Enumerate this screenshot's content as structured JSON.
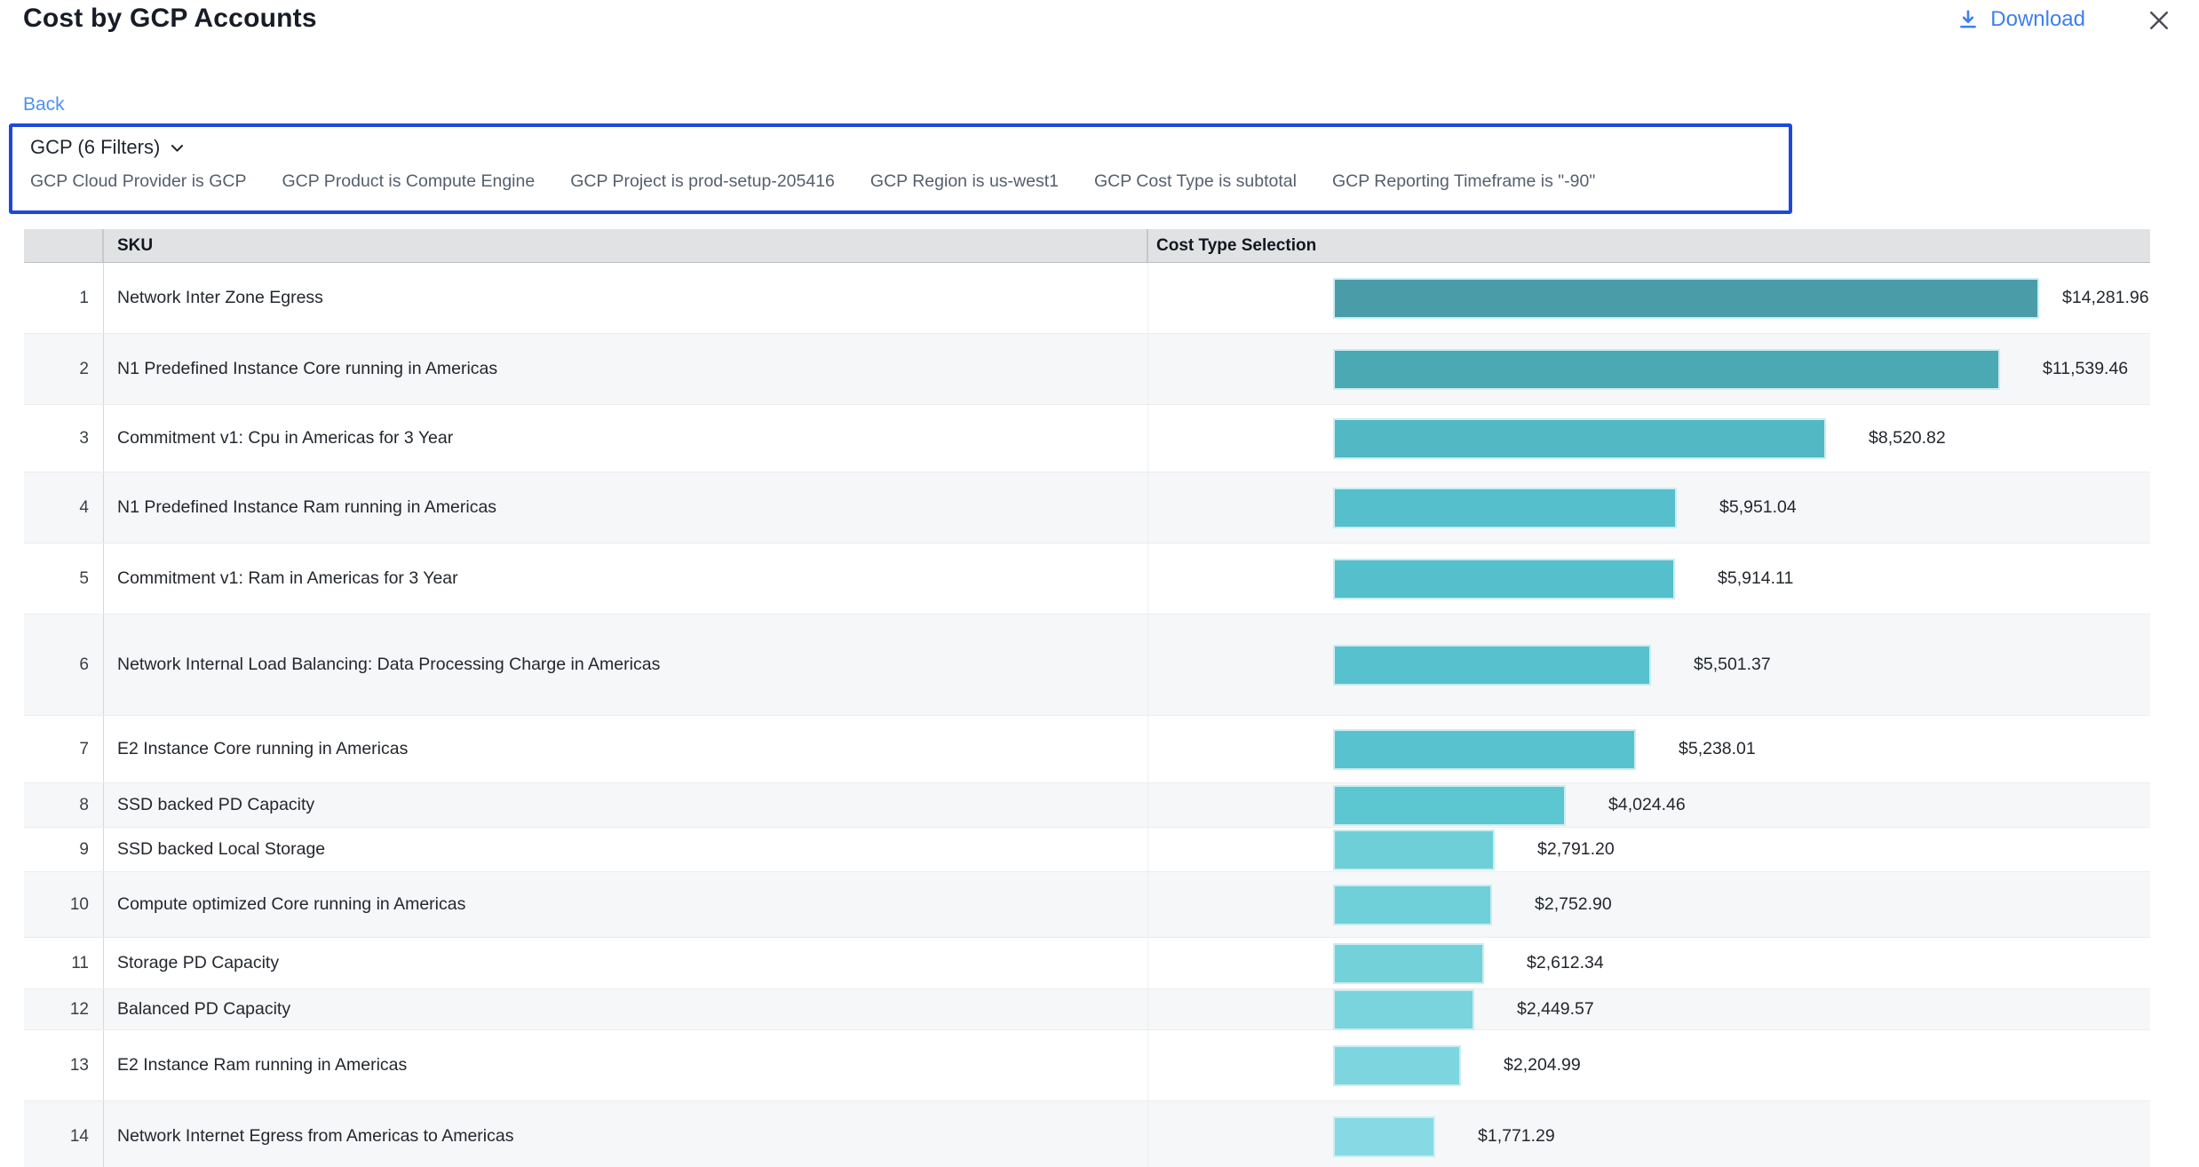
{
  "header": {
    "title": "Cost by GCP Accounts",
    "download_label": "Download"
  },
  "nav": {
    "back_label": "Back"
  },
  "filter_panel": {
    "summary_label": "GCP (6 Filters)",
    "filters": [
      "GCP Cloud Provider is GCP",
      "GCP Product is Compute Engine",
      "GCP Project is prod-setup-205416",
      "GCP Region is us-west1",
      "GCP Cost Type is subtotal",
      "GCP Reporting Timeframe is \"-90\""
    ]
  },
  "table": {
    "columns": {
      "sku": "SKU",
      "cost_type": "Cost Type Selection"
    }
  },
  "colors": {
    "accent_blue": "#3d7ff0",
    "back_link_blue": "#4c92ee",
    "filter_border_blue": "#1d48d8",
    "header_gray": "#e1e2e4",
    "bar_border": "#c9edf2"
  },
  "chart_data": {
    "type": "bar",
    "orientation": "horizontal",
    "title": "Cost by GCP Accounts",
    "value_format": "USD",
    "legend": "none",
    "grid": false,
    "rows": [
      {
        "rank": 1,
        "sku": "Network Inter Zone Egress",
        "value": 14281.96,
        "value_label": "$14,281.96",
        "bar_color": "#4A9CA8"
      },
      {
        "rank": 2,
        "sku": "N1 Predefined Instance Core running in Americas",
        "value": 11539.46,
        "value_label": "$11,539.46",
        "bar_color": "#4BA9B4"
      },
      {
        "rank": 3,
        "sku": "Commitment v1: Cpu in Americas for 3 Year",
        "value": 8520.82,
        "value_label": "$8,520.82",
        "bar_color": "#52B8C4"
      },
      {
        "rank": 4,
        "sku": "N1 Predefined Instance Ram running in Americas",
        "value": 5951.04,
        "value_label": "$5,951.04",
        "bar_color": "#55BFCB"
      },
      {
        "rank": 5,
        "sku": "Commitment v1: Ram in Americas for 3 Year",
        "value": 5914.11,
        "value_label": "$5,914.11",
        "bar_color": "#55BFCB"
      },
      {
        "rank": 6,
        "sku": "Network Internal Load Balancing: Data Processing Charge in Americas",
        "value": 5501.37,
        "value_label": "$5,501.37",
        "bar_color": "#57C2CE"
      },
      {
        "rank": 7,
        "sku": "E2 Instance Core running in Americas",
        "value": 5238.01,
        "value_label": "$5,238.01",
        "bar_color": "#58C3CF"
      },
      {
        "rank": 8,
        "sku": "SSD backed PD Capacity",
        "value": 4024.46,
        "value_label": "$4,024.46",
        "bar_color": "#5CC7D1"
      },
      {
        "rank": 9,
        "sku": "SSD backed Local Storage",
        "value": 2791.2,
        "value_label": "$2,791.20",
        "bar_color": "#6FCFD9"
      },
      {
        "rank": 10,
        "sku": "Compute optimized Core running in Americas",
        "value": 2752.9,
        "value_label": "$2,752.90",
        "bar_color": "#70D0D9"
      },
      {
        "rank": 11,
        "sku": "Storage PD Capacity",
        "value": 2612.34,
        "value_label": "$2,612.34",
        "bar_color": "#73D1DA"
      },
      {
        "rank": 12,
        "sku": "Balanced PD Capacity",
        "value": 2449.57,
        "value_label": "$2,449.57",
        "bar_color": "#79D4DD"
      },
      {
        "rank": 13,
        "sku": "E2 Instance Ram running in Americas",
        "value": 2204.99,
        "value_label": "$2,204.99",
        "bar_color": "#7DD6DF"
      },
      {
        "rank": 14,
        "sku": "Network Internet Egress from Americas to Americas",
        "value": 1771.29,
        "value_label": "$1,771.29",
        "bar_color": "#87DAE3"
      }
    ]
  }
}
